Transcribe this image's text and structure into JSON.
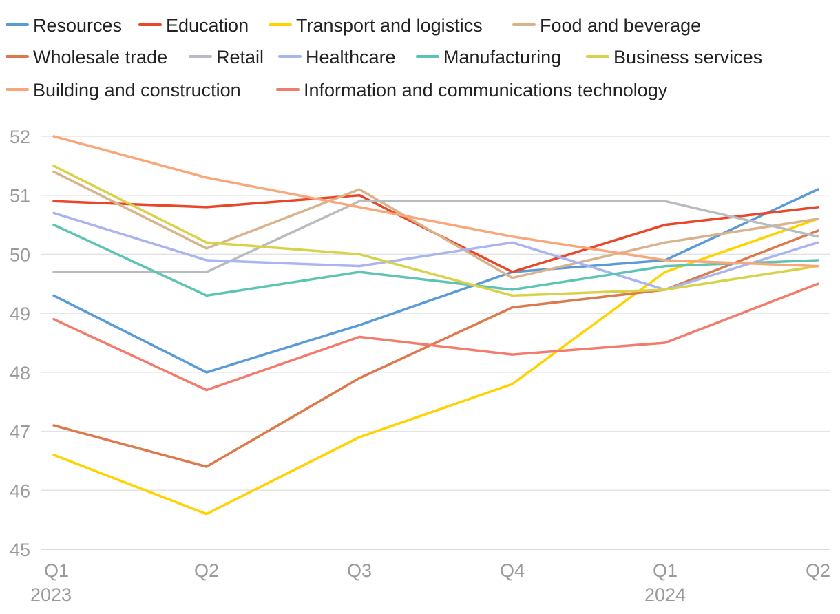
{
  "chart_data": {
    "type": "line",
    "title": "",
    "xlabel": "",
    "ylabel": "",
    "ylim": [
      45,
      52
    ],
    "y_ticks": [
      45,
      46,
      47,
      48,
      49,
      50,
      51,
      52
    ],
    "categories": [
      "Q1",
      "Q2",
      "Q3",
      "Q4",
      "Q1",
      "Q2"
    ],
    "year_labels": [
      {
        "index": 0,
        "label": "2023"
      },
      {
        "index": 4,
        "label": "2024"
      }
    ],
    "legend_position": "top",
    "grid": true,
    "series": [
      {
        "name": "Resources",
        "color": "#5b9bd5",
        "values": [
          49.3,
          48.0,
          48.8,
          49.7,
          49.9,
          51.1
        ]
      },
      {
        "name": "Education",
        "color": "#e8472a",
        "values": [
          50.9,
          50.8,
          51.0,
          49.7,
          50.5,
          50.8
        ]
      },
      {
        "name": "Transport and logistics",
        "color": "#ffd200",
        "values": [
          46.6,
          45.6,
          46.9,
          47.8,
          49.7,
          50.6
        ]
      },
      {
        "name": "Food and beverage",
        "color": "#d9b38c",
        "values": [
          51.4,
          50.1,
          51.1,
          49.6,
          50.2,
          50.6
        ]
      },
      {
        "name": "Wholesale trade",
        "color": "#dc7a4e",
        "values": [
          47.1,
          46.4,
          47.9,
          49.1,
          49.4,
          50.4
        ]
      },
      {
        "name": "Retail",
        "color": "#b8bcc0",
        "values": [
          49.7,
          49.7,
          50.9,
          50.9,
          50.9,
          50.3
        ]
      },
      {
        "name": "Healthcare",
        "color": "#aab4ee",
        "values": [
          50.7,
          49.9,
          49.8,
          50.2,
          49.4,
          50.2
        ]
      },
      {
        "name": "Manufacturing",
        "color": "#5dc4b4",
        "values": [
          50.5,
          49.3,
          49.7,
          49.4,
          49.8,
          49.9
        ]
      },
      {
        "name": "Business services",
        "color": "#d8d24a",
        "values": [
          51.5,
          50.2,
          50.0,
          49.3,
          49.4,
          49.8
        ]
      },
      {
        "name": "Building and construction",
        "color": "#f9a77a",
        "values": [
          52.0,
          51.3,
          50.8,
          50.3,
          49.9,
          49.8
        ]
      },
      {
        "name": "Information and communications technology",
        "color": "#f37b6c",
        "values": [
          48.9,
          47.7,
          48.6,
          48.3,
          48.5,
          49.5
        ]
      }
    ]
  }
}
